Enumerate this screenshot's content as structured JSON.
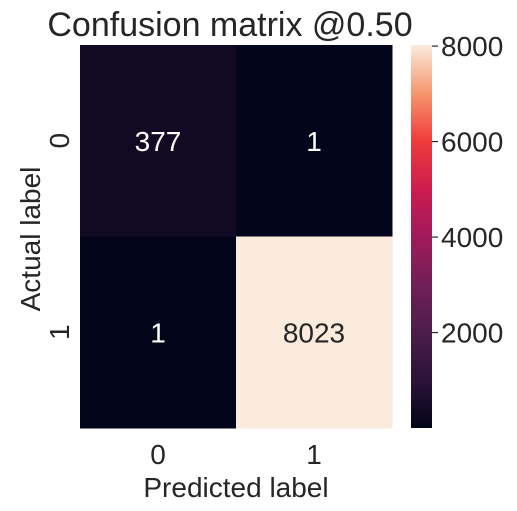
{
  "chart_data": {
    "type": "heatmap",
    "title": "Confusion matrix @0.50",
    "xlabel": "Predicted label",
    "ylabel": "Actual label",
    "x_categories": [
      "0",
      "1"
    ],
    "y_categories": [
      "0",
      "1"
    ],
    "values": [
      [
        377,
        1
      ],
      [
        1,
        8023
      ]
    ],
    "cell_labels": [
      [
        "377",
        "1"
      ],
      [
        "1",
        "8023"
      ]
    ],
    "colormap": "rocket",
    "colorbar": {
      "vmin": 1,
      "vmax": 8023,
      "ticks": [
        2000,
        4000,
        6000,
        8000
      ],
      "tick_labels": [
        "2000",
        "4000",
        "6000",
        "8000"
      ]
    },
    "grid": false
  }
}
